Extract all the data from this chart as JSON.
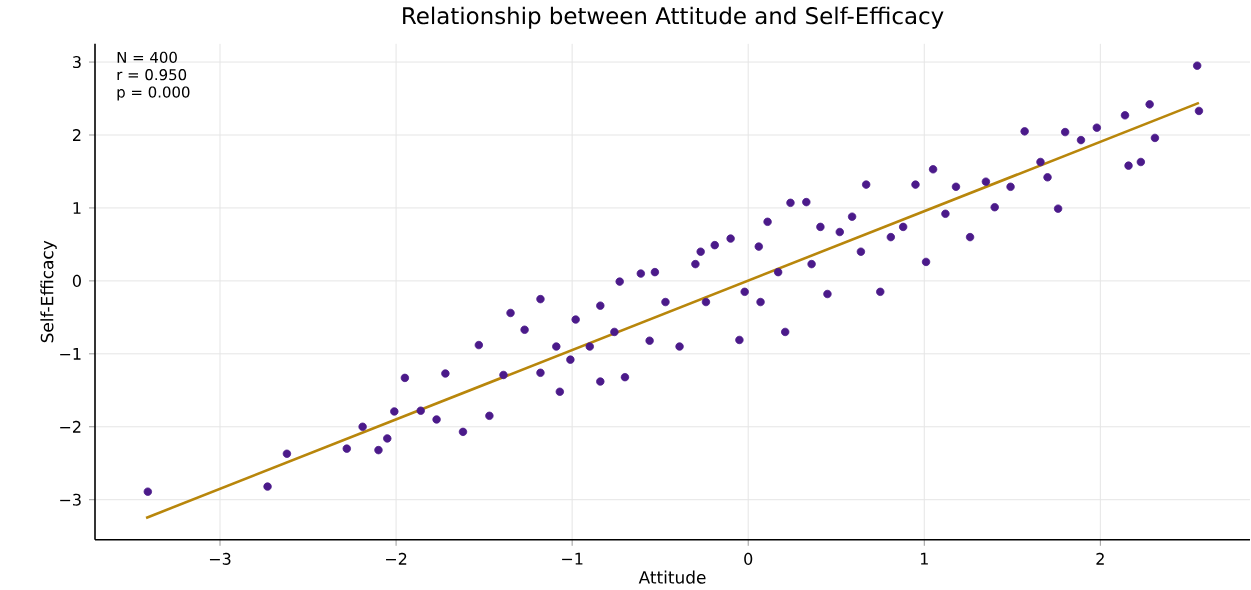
{
  "chart_data": {
    "type": "scatter",
    "title": "Relationship between Attitude and Self-Efficacy",
    "xlabel": "Attitude",
    "ylabel": "Self-Efficacy",
    "annotations": [
      "N = 400",
      "r = 0.950",
      "p = 0.000"
    ],
    "xlim": [
      -3.71,
      2.85
    ],
    "ylim": [
      -3.55,
      3.25
    ],
    "xticks": [
      {
        "value": -3,
        "label": "−3"
      },
      {
        "value": -2,
        "label": "−2"
      },
      {
        "value": -1,
        "label": "−1"
      },
      0,
      1,
      2
    ],
    "yticks": [
      {
        "value": -3,
        "label": "−3"
      },
      {
        "value": -2,
        "label": "−2"
      },
      {
        "value": -1,
        "label": "−1"
      },
      0,
      1,
      2,
      3
    ],
    "grid": true,
    "marker": "circle",
    "series": [
      {
        "color": "#4b1a8a",
        "x": [
          -3.41,
          -2.73,
          -2.62,
          -2.28,
          -2.19,
          -2.1,
          -2.05,
          -2.01,
          -1.95,
          -1.86,
          -1.77,
          -1.72,
          -1.62,
          -1.53,
          -1.47,
          -1.39,
          -1.35,
          -1.27,
          -1.18,
          -1.18,
          -1.09,
          -1.01,
          -0.98,
          -0.9,
          -0.84,
          -0.76,
          -0.7,
          -0.61,
          -0.56,
          -0.53,
          -0.47,
          -0.39,
          -0.3,
          -0.24,
          -0.19,
          -0.1,
          -0.05,
          -0.02,
          0.06,
          0.11,
          0.17,
          0.21,
          0.24,
          0.33,
          0.36,
          0.45,
          0.52,
          0.59,
          0.67,
          0.75,
          0.81,
          0.88,
          0.95,
          1.01,
          1.05,
          1.12,
          1.18,
          1.26,
          1.35,
          1.4,
          1.49,
          1.57,
          1.66,
          1.7,
          1.76,
          1.8,
          1.89,
          1.98,
          2.14,
          2.16,
          2.23,
          2.28,
          2.31,
          2.55,
          2.56,
          -0.73,
          -0.27,
          0.07,
          0.41,
          0.64,
          -0.84,
          -1.07
        ],
        "values": [
          -2.89,
          -2.82,
          -2.37,
          -2.3,
          -2.0,
          -2.32,
          -2.16,
          -1.79,
          -1.33,
          -1.78,
          -1.9,
          -1.27,
          -2.07,
          -0.88,
          -1.85,
          -1.29,
          -0.44,
          -0.67,
          -1.26,
          -0.25,
          -0.9,
          -1.08,
          -0.53,
          -0.9,
          -0.34,
          -0.7,
          -1.32,
          0.1,
          -0.82,
          0.12,
          -0.29,
          -0.9,
          0.23,
          -0.29,
          0.49,
          0.58,
          -0.81,
          -0.15,
          0.47,
          0.81,
          0.12,
          -0.7,
          1.07,
          1.08,
          0.23,
          -0.18,
          0.67,
          0.88,
          1.32,
          -0.15,
          0.6,
          0.74,
          1.32,
          0.26,
          1.53,
          0.92,
          1.29,
          0.6,
          1.36,
          1.01,
          1.29,
          2.05,
          1.63,
          1.42,
          0.99,
          2.04,
          1.93,
          2.1,
          2.27,
          1.58,
          1.63,
          2.42,
          1.96,
          2.95,
          2.33,
          -0.01,
          0.4,
          -0.29,
          0.74,
          0.4,
          -1.38,
          -1.52
        ]
      },
      {
        "type": "line",
        "marker": "none",
        "color": "#b8860b",
        "x": [
          -3.42,
          2.56
        ],
        "values": [
          -3.25,
          2.44
        ]
      }
    ]
  }
}
